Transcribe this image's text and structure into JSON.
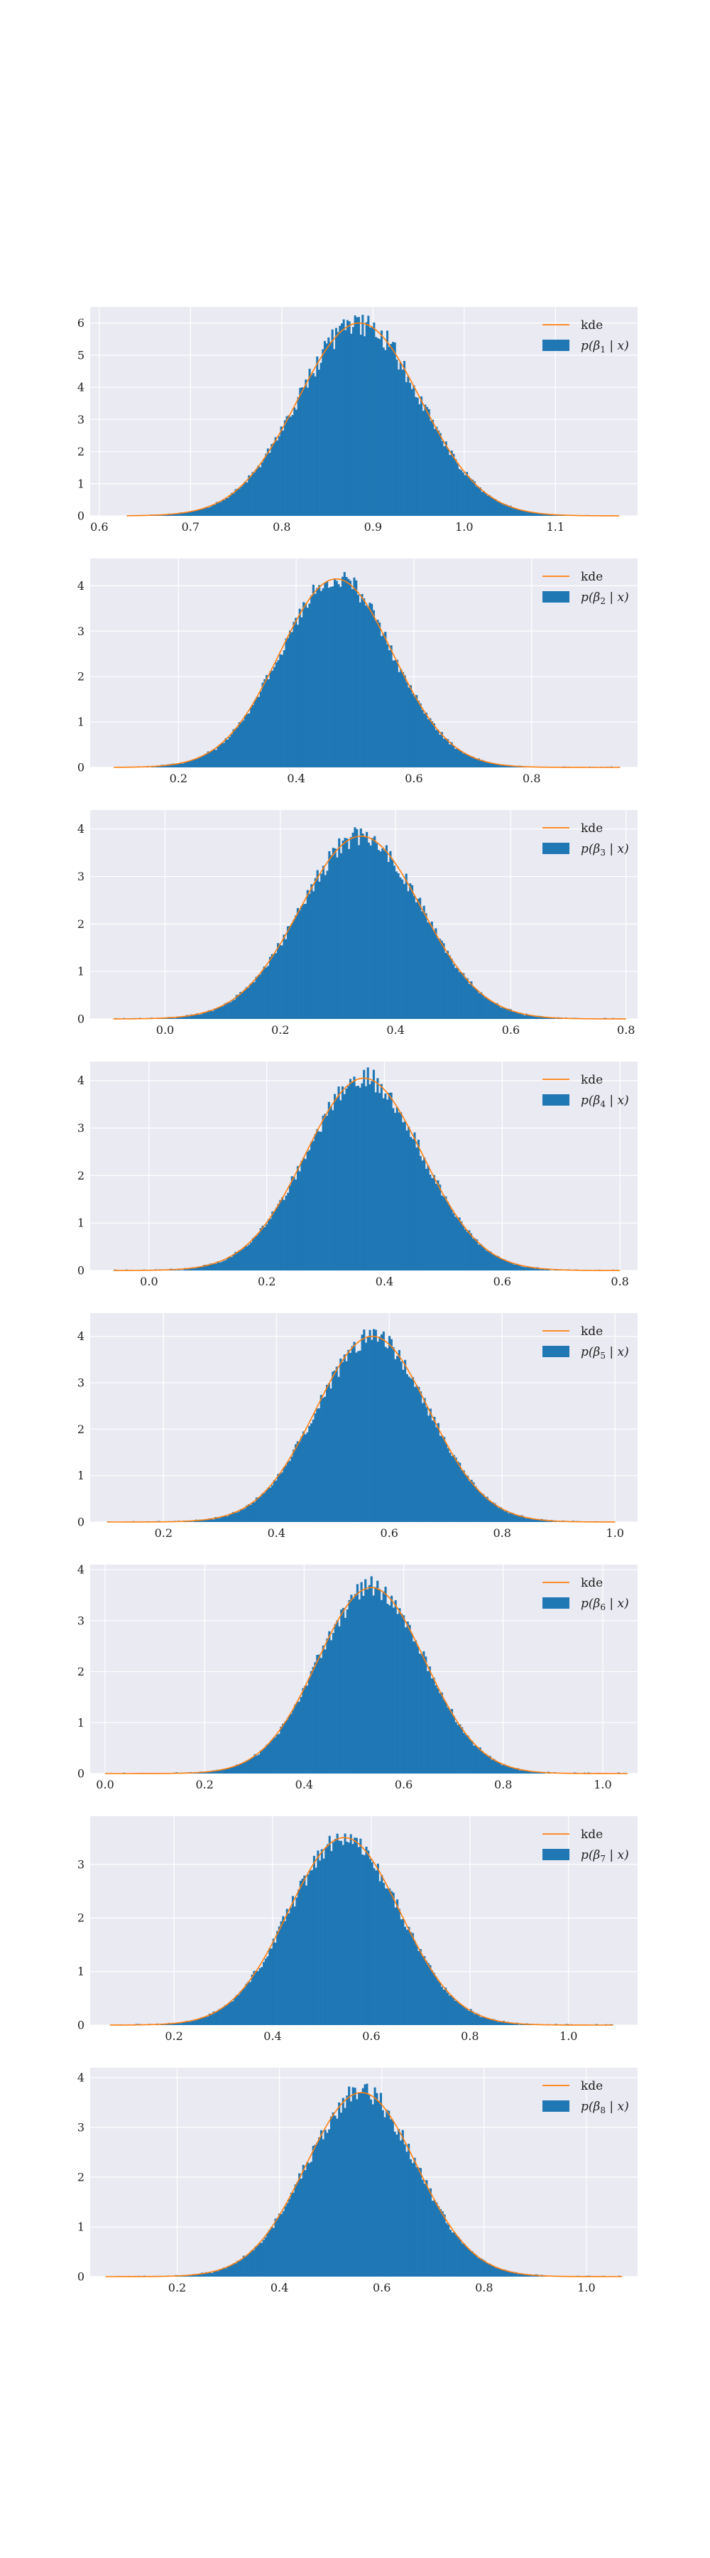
{
  "colors": {
    "panel_bg": "#eaeaf2",
    "grid": "#ffffff",
    "hist": "#1f77b4",
    "kde": "#ff7f0e",
    "text": "#222222"
  },
  "chart_data": [
    {
      "type": "histogram",
      "title": "",
      "xlabel": "",
      "ylabel": "",
      "grid": true,
      "legend_position": "top-right",
      "legend": {
        "kde_label": "kde",
        "hist_label_pre": "p(β",
        "hist_label_sub": "1",
        "hist_label_post": " | x)"
      },
      "series": [
        {
          "name": "kde",
          "kind": "line",
          "dist": "normal",
          "mean": 0.885,
          "sd": 0.067
        },
        {
          "name": "p(β1 | x)",
          "kind": "histogram",
          "dist": "normal",
          "mean": 0.885,
          "sd": 0.067,
          "peak": 6.0,
          "bins": 260
        }
      ],
      "xlim": [
        0.59,
        1.19
      ],
      "ylim": [
        0,
        6.5
      ],
      "xticks": [
        0.6,
        0.7,
        0.8,
        0.9,
        1.0,
        1.1
      ],
      "xtick_labels": [
        "0.6",
        "0.7",
        "0.8",
        "0.9",
        "1.0",
        "1.1"
      ],
      "yticks": [
        0,
        1,
        2,
        3,
        4,
        5,
        6
      ],
      "ytick_labels": [
        "0",
        "1",
        "2",
        "3",
        "4",
        "5",
        "6"
      ],
      "data_range": [
        0.63,
        1.17
      ],
      "noise": 0.07
    },
    {
      "type": "histogram",
      "title": "",
      "xlabel": "",
      "ylabel": "",
      "grid": true,
      "legend_position": "top-right",
      "legend": {
        "kde_label": "kde",
        "hist_label_pre": "p(β",
        "hist_label_sub": "2",
        "hist_label_post": " | x)"
      },
      "series": [
        {
          "name": "kde",
          "kind": "line",
          "dist": "normal",
          "mean": 0.468,
          "sd": 0.096
        },
        {
          "name": "p(β2 | x)",
          "kind": "histogram",
          "dist": "normal",
          "mean": 0.468,
          "sd": 0.096,
          "peak": 4.15,
          "bins": 260
        }
      ],
      "xlim": [
        0.05,
        0.98
      ],
      "ylim": [
        0,
        4.6
      ],
      "xticks": [
        0.2,
        0.4,
        0.6,
        0.8
      ],
      "xtick_labels": [
        "0.2",
        "0.4",
        "0.6",
        "0.8"
      ],
      "yticks": [
        0,
        1,
        2,
        3,
        4
      ],
      "ytick_labels": [
        "0",
        "1",
        "2",
        "3",
        "4"
      ],
      "data_range": [
        0.09,
        0.95
      ],
      "noise": 0.06
    },
    {
      "type": "histogram",
      "title": "",
      "xlabel": "",
      "ylabel": "",
      "grid": true,
      "legend_position": "top-right",
      "legend": {
        "kde_label": "kde",
        "hist_label_pre": "p(β",
        "hist_label_sub": "3",
        "hist_label_post": " | x)"
      },
      "series": [
        {
          "name": "kde",
          "kind": "line",
          "dist": "normal",
          "mean": 0.34,
          "sd": 0.105
        },
        {
          "name": "p(β3 | x)",
          "kind": "histogram",
          "dist": "normal",
          "mean": 0.34,
          "sd": 0.105,
          "peak": 3.85,
          "bins": 260
        }
      ],
      "xlim": [
        -0.13,
        0.82
      ],
      "ylim": [
        0,
        4.4
      ],
      "xticks": [
        0.0,
        0.2,
        0.4,
        0.6,
        0.8
      ],
      "xtick_labels": [
        "0.0",
        "0.2",
        "0.4",
        "0.6",
        "0.8"
      ],
      "yticks": [
        0,
        1,
        2,
        3,
        4
      ],
      "ytick_labels": [
        "0",
        "1",
        "2",
        "3",
        "4"
      ],
      "data_range": [
        -0.09,
        0.8
      ],
      "noise": 0.06
    },
    {
      "type": "histogram",
      "title": "",
      "xlabel": "",
      "ylabel": "",
      "grid": true,
      "legend_position": "top-right",
      "legend": {
        "kde_label": "kde",
        "hist_label_pre": "p(β",
        "hist_label_sub": "4",
        "hist_label_post": " | x)"
      },
      "series": [
        {
          "name": "kde",
          "kind": "line",
          "dist": "normal",
          "mean": 0.365,
          "sd": 0.099
        },
        {
          "name": "p(β4 | x)",
          "kind": "histogram",
          "dist": "normal",
          "mean": 0.365,
          "sd": 0.099,
          "peak": 4.05,
          "bins": 260
        }
      ],
      "xlim": [
        -0.1,
        0.83
      ],
      "ylim": [
        0,
        4.4
      ],
      "xticks": [
        0.0,
        0.2,
        0.4,
        0.6,
        0.8
      ],
      "xtick_labels": [
        "0.0",
        "0.2",
        "0.4",
        "0.6",
        "0.8"
      ],
      "yticks": [
        0,
        1,
        2,
        3,
        4
      ],
      "ytick_labels": [
        "0",
        "1",
        "2",
        "3",
        "4"
      ],
      "data_range": [
        -0.06,
        0.8
      ],
      "noise": 0.06
    },
    {
      "type": "histogram",
      "title": "",
      "xlabel": "",
      "ylabel": "",
      "grid": true,
      "legend_position": "top-right",
      "legend": {
        "kde_label": "kde",
        "hist_label_pre": "p(β",
        "hist_label_sub": "5",
        "hist_label_post": " | x)"
      },
      "series": [
        {
          "name": "kde",
          "kind": "line",
          "dist": "normal",
          "mean": 0.57,
          "sd": 0.1
        },
        {
          "name": "p(β5 | x)",
          "kind": "histogram",
          "dist": "normal",
          "mean": 0.57,
          "sd": 0.1,
          "peak": 4.0,
          "bins": 260
        }
      ],
      "xlim": [
        0.07,
        1.04
      ],
      "ylim": [
        0,
        4.5
      ],
      "xticks": [
        0.2,
        0.4,
        0.6,
        0.8,
        1.0
      ],
      "xtick_labels": [
        "0.2",
        "0.4",
        "0.6",
        "0.8",
        "1.0"
      ],
      "yticks": [
        0,
        1,
        2,
        3,
        4
      ],
      "ytick_labels": [
        "0",
        "1",
        "2",
        "3",
        "4"
      ],
      "data_range": [
        0.1,
        1.0
      ],
      "noise": 0.06
    },
    {
      "type": "histogram",
      "title": "",
      "xlabel": "",
      "ylabel": "",
      "grid": true,
      "legend_position": "top-right",
      "legend": {
        "kde_label": "kde",
        "hist_label_pre": "p(β",
        "hist_label_sub": "6",
        "hist_label_post": " | x)"
      },
      "series": [
        {
          "name": "kde",
          "kind": "line",
          "dist": "normal",
          "mean": 0.535,
          "sd": 0.108
        },
        {
          "name": "p(β6 | x)",
          "kind": "histogram",
          "dist": "normal",
          "mean": 0.535,
          "sd": 0.108,
          "peak": 3.65,
          "bins": 260
        }
      ],
      "xlim": [
        -0.03,
        1.07
      ],
      "ylim": [
        0,
        4.1
      ],
      "xticks": [
        0.0,
        0.2,
        0.4,
        0.6,
        0.8,
        1.0
      ],
      "xtick_labels": [
        "0.0",
        "0.2",
        "0.4",
        "0.6",
        "0.8",
        "1.0"
      ],
      "yticks": [
        0,
        1,
        2,
        3,
        4
      ],
      "ytick_labels": [
        "0",
        "1",
        "2",
        "3",
        "4"
      ],
      "data_range": [
        0.0,
        1.05
      ],
      "noise": 0.06
    },
    {
      "type": "histogram",
      "title": "",
      "xlabel": "",
      "ylabel": "",
      "grid": true,
      "legend_position": "top-right",
      "legend": {
        "kde_label": "kde",
        "hist_label_pre": "p(β",
        "hist_label_sub": "7",
        "hist_label_post": " | x)"
      },
      "series": [
        {
          "name": "kde",
          "kind": "line",
          "dist": "normal",
          "mean": 0.545,
          "sd": 0.113
        },
        {
          "name": "p(β7 | x)",
          "kind": "histogram",
          "dist": "normal",
          "mean": 0.545,
          "sd": 0.113,
          "peak": 3.5,
          "bins": 260
        }
      ],
      "xlim": [
        0.03,
        1.14
      ],
      "ylim": [
        0,
        3.9
      ],
      "xticks": [
        0.2,
        0.4,
        0.6,
        0.8,
        1.0
      ],
      "xtick_labels": [
        "0.2",
        "0.4",
        "0.6",
        "0.8",
        "1.0"
      ],
      "yticks": [
        0,
        1,
        2,
        3
      ],
      "ytick_labels": [
        "0",
        "1",
        "2",
        "3"
      ],
      "data_range": [
        0.07,
        1.09
      ],
      "noise": 0.06
    },
    {
      "type": "histogram",
      "title": "",
      "xlabel": "",
      "ylabel": "",
      "grid": true,
      "legend_position": "top-right",
      "legend": {
        "kde_label": "kde",
        "hist_label_pre": "p(β",
        "hist_label_sub": "8",
        "hist_label_post": " | x)"
      },
      "series": [
        {
          "name": "kde",
          "kind": "line",
          "dist": "normal",
          "mean": 0.56,
          "sd": 0.108
        },
        {
          "name": "p(β8 | x)",
          "kind": "histogram",
          "dist": "normal",
          "mean": 0.56,
          "sd": 0.108,
          "peak": 3.7,
          "bins": 260
        }
      ],
      "xlim": [
        0.03,
        1.1
      ],
      "ylim": [
        0,
        4.2
      ],
      "xticks": [
        0.2,
        0.4,
        0.6,
        0.8,
        1.0
      ],
      "xtick_labels": [
        "0.2",
        "0.4",
        "0.6",
        "0.8",
        "1.0"
      ],
      "yticks": [
        0,
        1,
        2,
        3,
        4
      ],
      "ytick_labels": [
        "0",
        "1",
        "2",
        "3",
        "4"
      ],
      "data_range": [
        0.06,
        1.07
      ],
      "noise": 0.06
    }
  ]
}
